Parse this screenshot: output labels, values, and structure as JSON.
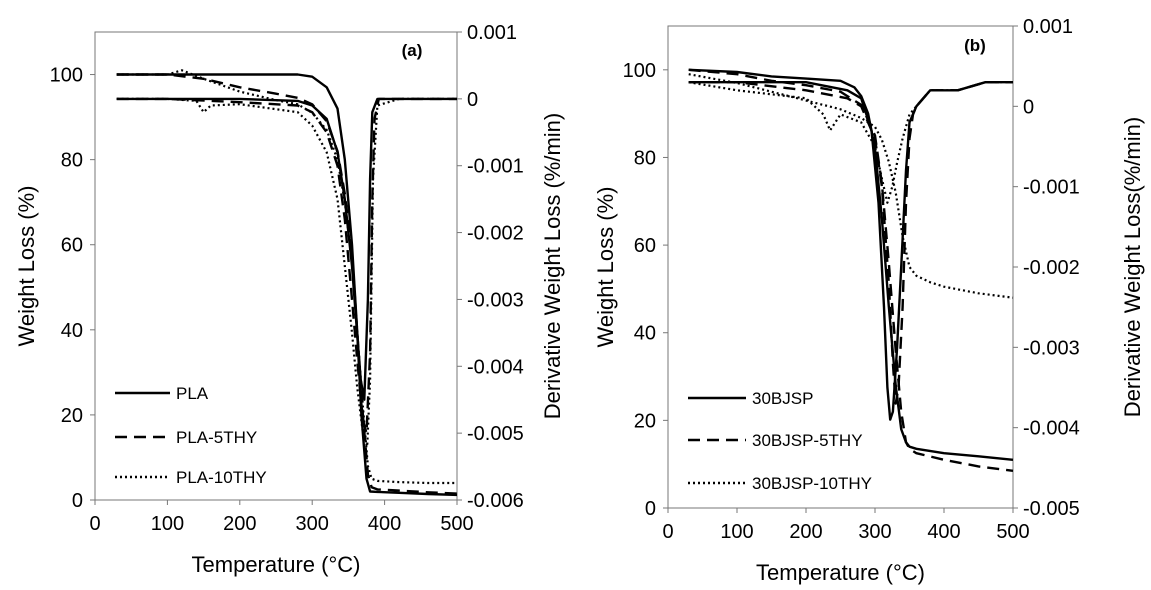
{
  "chart_data": [
    {
      "type": "line",
      "panel_label": "(a)",
      "xlabel": "Temperature (°C)",
      "ylabel": "Weight Loss (%)",
      "y2label": "Derivative Weight Loss (%/min)",
      "xlim": [
        0,
        500
      ],
      "ylim": [
        0,
        110
      ],
      "y2lim": [
        -0.006,
        0.001
      ],
      "xticks": [
        "0",
        "100",
        "200",
        "300",
        "400",
        "500"
      ],
      "yticks": [
        "0",
        "20",
        "40",
        "60",
        "80",
        "100"
      ],
      "y2ticks": [
        "-0.006",
        "-0.005",
        "-0.004",
        "-0.003",
        "-0.002",
        "-0.001",
        "0",
        "0.001"
      ],
      "grid": false,
      "legend_position": "bottom-left",
      "series": [
        {
          "name": "PLA",
          "style": "solid",
          "axis": "left",
          "role": "TG",
          "x": [
            30,
            100,
            200,
            280,
            300,
            320,
            335,
            345,
            355,
            362,
            368,
            375,
            380,
            390,
            420,
            460,
            500
          ],
          "y": [
            100,
            100,
            100,
            100,
            99.5,
            97,
            92,
            80,
            60,
            40,
            20,
            5,
            2,
            1.9,
            1.7,
            1.4,
            1.2
          ]
        },
        {
          "name": "PLA-5THY",
          "style": "dashed",
          "axis": "left",
          "role": "TG",
          "x": [
            30,
            100,
            150,
            200,
            250,
            280,
            300,
            320,
            335,
            345,
            355,
            362,
            370,
            377,
            382,
            390,
            420,
            460,
            500
          ],
          "y": [
            100,
            100,
            99,
            97,
            95.5,
            94.5,
            93,
            89,
            82,
            72,
            58,
            40,
            20,
            6,
            3,
            2.5,
            2.2,
            1.8,
            1.5
          ]
        },
        {
          "name": "PLA-10THY",
          "style": "dotted",
          "axis": "left",
          "role": "TG",
          "x": [
            30,
            100,
            120,
            150,
            200,
            250,
            280,
            300,
            320,
            335,
            345,
            355,
            362,
            370,
            377,
            382,
            390,
            420,
            460,
            500
          ],
          "y": [
            100,
            100,
            101,
            99,
            96,
            94,
            93,
            91,
            87,
            80,
            70,
            56,
            40,
            22,
            8,
            5,
            4.5,
            4.2,
            4,
            4
          ]
        },
        {
          "name": "PLA",
          "style": "solid",
          "axis": "right",
          "role": "DTG",
          "x": [
            30,
            100,
            200,
            280,
            300,
            320,
            335,
            345,
            355,
            362,
            367,
            372,
            377,
            380,
            383,
            390,
            420,
            460,
            500
          ],
          "y": [
            0,
            0,
            0,
            -3e-05,
            -0.0001,
            -0.0003,
            -0.0008,
            -0.0015,
            -0.0025,
            -0.0035,
            -0.0042,
            -0.0045,
            -0.003,
            -0.0012,
            -0.0002,
            0,
            0,
            0,
            0
          ]
        },
        {
          "name": "PLA-5THY",
          "style": "dashed",
          "axis": "right",
          "role": "DTG",
          "x": [
            30,
            100,
            200,
            280,
            300,
            320,
            335,
            345,
            355,
            363,
            370,
            375,
            380,
            383,
            386,
            392,
            420,
            460,
            500
          ],
          "y": [
            0,
            0,
            -5e-05,
            -0.0001,
            -0.0002,
            -0.0005,
            -0.001,
            -0.0018,
            -0.003,
            -0.004,
            -0.0048,
            -0.005,
            -0.0038,
            -0.0015,
            -0.0003,
            0,
            0,
            0,
            0
          ]
        },
        {
          "name": "PLA-10THY",
          "style": "dotted",
          "axis": "right",
          "role": "DTG",
          "x": [
            30,
            100,
            140,
            150,
            160,
            200,
            280,
            300,
            320,
            335,
            345,
            355,
            362,
            370,
            376,
            380,
            384,
            390,
            420,
            460,
            500
          ],
          "y": [
            0,
            0,
            -3e-05,
            -0.0002,
            -0.0001,
            -8e-05,
            -0.0002,
            -0.0004,
            -0.0008,
            -0.0015,
            -0.0025,
            -0.0035,
            -0.0043,
            -0.005,
            -0.0052,
            -0.0042,
            -0.0012,
            -0.0001,
            0,
            0,
            0
          ]
        }
      ]
    },
    {
      "type": "line",
      "panel_label": "(b)",
      "xlabel": "Temperature (°C)",
      "ylabel": "Weight Loss (%)",
      "y2label": "Derivative Weight Loss(%/min)",
      "xlim": [
        0,
        500
      ],
      "ylim": [
        0,
        110
      ],
      "y2lim": [
        -0.005,
        0.001
      ],
      "xticks": [
        "0",
        "100",
        "200",
        "300",
        "400",
        "500"
      ],
      "yticks": [
        "0",
        "20",
        "40",
        "60",
        "80",
        "100"
      ],
      "y2ticks": [
        "-0.005",
        "-0.004",
        "-0.003",
        "-0.002",
        "-0.001",
        "0",
        "0.001"
      ],
      "grid": false,
      "legend_position": "bottom-left",
      "series": [
        {
          "name": "30BJSP",
          "style": "solid",
          "axis": "left",
          "role": "TG",
          "x": [
            30,
            100,
            150,
            200,
            250,
            270,
            280,
            290,
            300,
            310,
            320,
            330,
            338,
            345,
            350,
            360,
            400,
            450,
            500
          ],
          "y": [
            100,
            99.5,
            98.5,
            98,
            97.5,
            96,
            94,
            90,
            82,
            66,
            46,
            28,
            18,
            15,
            14,
            13.5,
            12.5,
            11.8,
            11
          ]
        },
        {
          "name": "30BJSP-5THY",
          "style": "dashed",
          "axis": "left",
          "role": "TG",
          "x": [
            30,
            100,
            150,
            200,
            250,
            280,
            300,
            310,
            320,
            330,
            338,
            345,
            350,
            360,
            400,
            450,
            500
          ],
          "y": [
            100,
            99,
            97.5,
            96.5,
            95,
            92,
            85,
            74,
            56,
            36,
            22,
            15,
            13.5,
            12.5,
            11,
            9.5,
            8.5
          ]
        },
        {
          "name": "30BJSP-10THY",
          "style": "dotted",
          "axis": "left",
          "role": "TG",
          "x": [
            30,
            100,
            150,
            200,
            250,
            280,
            300,
            310,
            320,
            330,
            340,
            350,
            360,
            380,
            400,
            450,
            500
          ],
          "y": [
            99,
            97,
            95,
            93,
            91,
            89,
            87,
            84,
            79,
            72,
            62,
            55,
            53,
            51.5,
            50.5,
            49,
            48
          ]
        },
        {
          "name": "30BJSP",
          "style": "solid",
          "axis": "right",
          "role": "DTG",
          "x": [
            30,
            100,
            200,
            260,
            280,
            295,
            305,
            313,
            318,
            322,
            326,
            332,
            338,
            345,
            350,
            360,
            380,
            420,
            460,
            500
          ],
          "y": [
            0.0003,
            0.0003,
            0.0003,
            0.0002,
            0.0001,
            -0.0003,
            -0.0012,
            -0.0025,
            -0.0035,
            -0.0039,
            -0.0038,
            -0.003,
            -0.002,
            -0.0008,
            -0.0002,
            0,
            0.0002,
            0.0002,
            0.0003,
            0.0003
          ]
        },
        {
          "name": "30BJSP-5THY",
          "style": "dashed",
          "axis": "right",
          "role": "DTG",
          "x": [
            30,
            100,
            200,
            260,
            280,
            300,
            310,
            320,
            326,
            330,
            334,
            340,
            345,
            350,
            355,
            360,
            380,
            420,
            460,
            500
          ],
          "y": [
            0.0003,
            0.0003,
            0.0002,
            0.0001,
            0,
            -0.0004,
            -0.001,
            -0.0022,
            -0.0032,
            -0.0037,
            -0.0035,
            -0.0025,
            -0.0012,
            -0.0004,
            -0.0001,
            0,
            0.0002,
            0.0002,
            0.0003,
            0.0003
          ]
        },
        {
          "name": "30BJSP-10THY",
          "style": "dotted",
          "axis": "right",
          "role": "DTG",
          "x": [
            30,
            100,
            200,
            225,
            235,
            250,
            280,
            300,
            310,
            318,
            325,
            332,
            340,
            350,
            360,
            380,
            420,
            460,
            500
          ],
          "y": [
            0.0003,
            0.0002,
            0.0001,
            -0.0001,
            -0.0003,
            -0.0001,
            -0.0002,
            -0.0005,
            -0.0009,
            -0.0012,
            -0.001,
            -0.0007,
            -0.0004,
            -0.0001,
            0,
            0.0002,
            0.0002,
            0.0003,
            0.0003
          ]
        }
      ]
    }
  ]
}
